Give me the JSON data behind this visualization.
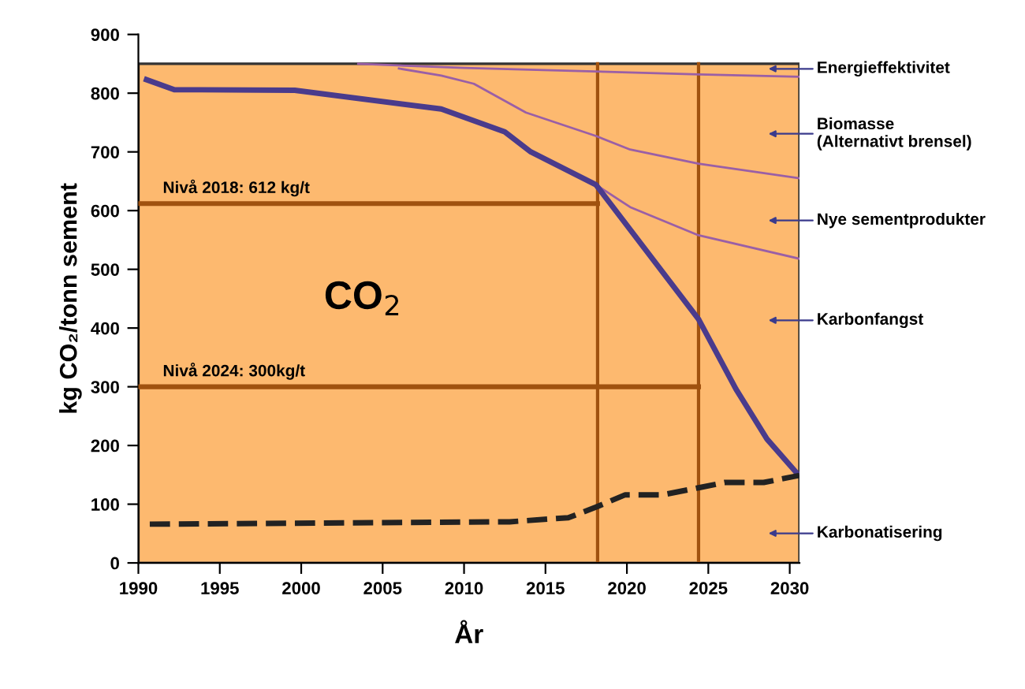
{
  "chart_data": {
    "type": "line",
    "xlabel": "År",
    "ylabel": "kg CO₂/tonn sement",
    "xlim": [
      1990,
      2030.6
    ],
    "xticks": [
      1990,
      1995,
      2000,
      2005,
      2010,
      2015,
      2020,
      2025,
      2030
    ],
    "ylim": [
      0,
      900
    ],
    "yticks": [
      0,
      100,
      200,
      300,
      400,
      500,
      600,
      700,
      800,
      900
    ],
    "grid": false,
    "legend": false,
    "bands": [
      {
        "axis": "y",
        "from": 0,
        "to": 850,
        "color": "#fdb96f"
      }
    ],
    "ref_lines": [
      {
        "axis": "x",
        "value": 2018.2,
        "color": "#a0520f"
      },
      {
        "axis": "x",
        "value": 2024.4,
        "color": "#a0520f"
      }
    ],
    "series": [
      {
        "color": "#a0520f",
        "x": [
          1990,
          2018.2
        ],
        "values": [
          612,
          612
        ]
      },
      {
        "color": "#a0520f",
        "x": [
          1990,
          2024.4
        ],
        "values": [
          300,
          300
        ]
      },
      {
        "color": "#9a5fa6",
        "x": [
          2003.5,
          2010,
          2018,
          2024.4,
          2030.6
        ],
        "values": [
          850,
          843,
          837,
          832,
          828
        ]
      },
      {
        "color": "#9a5fa6",
        "x": [
          2006,
          2008.6,
          2010.6,
          2013.8,
          2018.1,
          2020.2,
          2024.4,
          2030.6
        ],
        "values": [
          842,
          830,
          816,
          767,
          727,
          704,
          680,
          655
        ]
      },
      {
        "color": "#9a5fa6",
        "x": [
          2018.1,
          2020.2,
          2024.4,
          2030.6
        ],
        "values": [
          644,
          606,
          558,
          518
        ]
      },
      {
        "color": "#4a3b8c",
        "x": [
          1990.5,
          1992.2,
          1999.6,
          2008.6,
          2012.5,
          2014.1,
          2018.1,
          2024.4,
          2026.7,
          2028.6,
          2030.5
        ],
        "values": [
          823,
          806,
          805,
          773,
          734,
          700,
          644,
          415,
          296,
          211,
          151
        ]
      },
      {
        "color": "#222222",
        "line_style": "dashed",
        "x": [
          1990.7,
          2012.8,
          2016.4,
          2018.1,
          2019.9,
          2022.2,
          2024.4,
          2026,
          2028.4,
          2030.6
        ],
        "values": [
          66,
          70,
          77,
          95,
          116,
          116,
          128,
          137,
          137,
          149
        ]
      }
    ],
    "annotations": [
      "Energieffektivitet",
      "Biomasse\n(Alternativt brensel)",
      "Nye sementprodukter",
      "Karbonfangst",
      "Karbonatisering",
      {
        "text": "Nivå 2018: 612 kg/t",
        "x": 1991.5,
        "y": 612
      },
      {
        "text": "Nivå 2024: 300kg/t",
        "x": 1991.5,
        "y": 300
      },
      "CO$_{2}$"
    ]
  }
}
